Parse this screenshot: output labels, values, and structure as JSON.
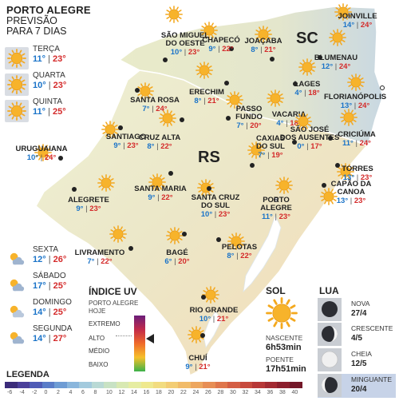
{
  "header": {
    "title": "PORTO ALEGRE",
    "subtitle1": "PREVISÃO",
    "subtitle2": "PARA 7 DIAS"
  },
  "states": {
    "rs": "RS",
    "sc": "SC"
  },
  "days": [
    {
      "name": "TERÇA",
      "min": "11°",
      "max": "23°",
      "icon": "sun-icon"
    },
    {
      "name": "QUARTA",
      "min": "10°",
      "max": "23°",
      "icon": "sun-icon"
    },
    {
      "name": "QUINTA",
      "min": "11°",
      "max": "25°",
      "icon": "sun-icon"
    },
    {
      "name": "SEXTA",
      "min": "12°",
      "max": "26°",
      "icon": "partly-cloudy-icon"
    },
    {
      "name": "SÁBADO",
      "min": "17°",
      "max": "25°",
      "icon": "partly-cloudy-icon"
    },
    {
      "name": "DOMINGO",
      "min": "14°",
      "max": "25°",
      "icon": "sun-cloud-icon"
    },
    {
      "name": "SEGUNDA",
      "min": "14°",
      "max": "27°",
      "icon": "partly-cloudy-icon"
    }
  ],
  "cities": [
    {
      "name": "JOINVILLE",
      "min": "14°",
      "max": "24°"
    },
    {
      "name": "CHAPECÓ",
      "min": "9°",
      "max": "22°"
    },
    {
      "name": "SÃO MIGUEL\nDO OESTE",
      "min": "10°",
      "max": "23°"
    },
    {
      "name": "JOAÇABA",
      "min": "8°",
      "max": "21°"
    },
    {
      "name": "BLUMENAU",
      "min": "12°",
      "max": "24°"
    },
    {
      "name": "LAGES",
      "min": "4°",
      "max": "18°"
    },
    {
      "name": "FLORIANÓPOLIS",
      "min": "13°",
      "max": "24°"
    },
    {
      "name": "ERECHIM",
      "min": "8°",
      "max": "21°"
    },
    {
      "name": "SANTA ROSA",
      "min": "7°",
      "max": "24°"
    },
    {
      "name": "PASSO\nFUNDO",
      "min": "7°",
      "max": "20°"
    },
    {
      "name": "VACARIA",
      "min": "4°",
      "max": "18°"
    },
    {
      "name": "SÃO JOSÉ\nDOS AUSENTES",
      "min": "0°",
      "max": "17°"
    },
    {
      "name": "CRICIÚMA",
      "min": "11°",
      "max": "24°"
    },
    {
      "name": "SANTIAGO",
      "min": "9°",
      "max": "23°"
    },
    {
      "name": "CRUZ ALTA",
      "min": "8°",
      "max": "22°"
    },
    {
      "name": "URUGUAIANA",
      "min": "10°",
      "max": "24°"
    },
    {
      "name": "CAXIAS\nDO SUL",
      "min": "7°",
      "max": "19°"
    },
    {
      "name": "TORRES",
      "min": "13°",
      "max": "23°"
    },
    {
      "name": "SANTA MARIA",
      "min": "9°",
      "max": "22°"
    },
    {
      "name": "CAPÃO DA\nCANOA",
      "min": "13°",
      "max": "23°"
    },
    {
      "name": "ALEGRETE",
      "min": "9°",
      "max": "23°"
    },
    {
      "name": "SANTA CRUZ\nDO SUL",
      "min": "10°",
      "max": "23°"
    },
    {
      "name": "PORTO\nALEGRE",
      "min": "11°",
      "max": "23°"
    },
    {
      "name": "LIVRAMENTO",
      "min": "7°",
      "max": "22°"
    },
    {
      "name": "BAGÉ",
      "min": "6°",
      "max": "20°"
    },
    {
      "name": "PELOTAS",
      "min": "8°",
      "max": "22°"
    },
    {
      "name": "RIO GRANDE",
      "min": "10°",
      "max": "21°"
    },
    {
      "name": "CHUÍ",
      "min": "9°",
      "max": "21°"
    }
  ],
  "uv": {
    "title": "ÍNDICE UV",
    "location1": "PORTO ALEGRE",
    "location2": "HOJE",
    "levels": [
      "EXTREMO",
      "ALTO",
      "MÉDIO",
      "BAIXO"
    ],
    "current_level": "ALTO"
  },
  "sun": {
    "title": "SOL",
    "rise_label": "NASCENTE",
    "rise_time": "6h53min",
    "set_label": "POENTE",
    "set_time": "17h51min"
  },
  "moon": {
    "title": "LUA",
    "phases": [
      {
        "name": "NOVA",
        "date": "27/4"
      },
      {
        "name": "CRESCENTE",
        "date": "4/5"
      },
      {
        "name": "CHEIA",
        "date": "12/5"
      },
      {
        "name": "MINGUANTE",
        "date": "20/4"
      }
    ]
  },
  "legend": {
    "title": "LEGENDA",
    "values": [
      "-6",
      "-4",
      "-2",
      "0",
      "2",
      "4",
      "6",
      "8",
      "10",
      "12",
      "14",
      "16",
      "18",
      "20",
      "22",
      "24",
      "26",
      "28",
      "30",
      "32",
      "34",
      "36",
      "38",
      "40"
    ],
    "colors": [
      "#3b2c7a",
      "#4a3f9a",
      "#4f5bb6",
      "#5a7cc8",
      "#6e9cd4",
      "#8ab6dc",
      "#a3cadd",
      "#b9d9d5",
      "#c8e2c4",
      "#d8e9b2",
      "#e6eda2",
      "#efe98e",
      "#f2dc80",
      "#f3cd74",
      "#f1bb69",
      "#eda65f",
      "#e78e55",
      "#df764c",
      "#d45e44",
      "#c7493d",
      "#b73737",
      "#a32a32",
      "#8c1f2d",
      "#731728"
    ]
  }
}
